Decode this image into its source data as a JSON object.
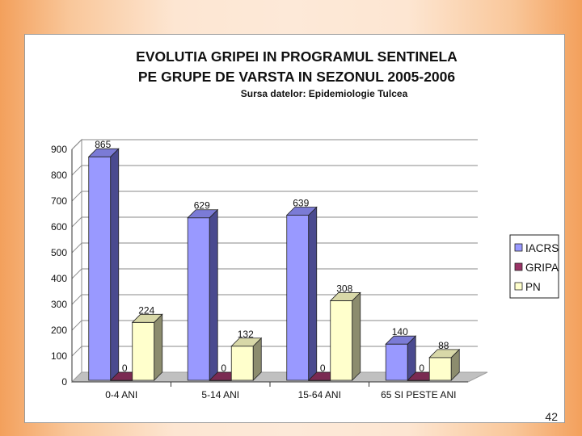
{
  "page_number": "42",
  "chart_data": {
    "type": "bar",
    "title_lines": [
      "EVOLUTIA GRIPEI IN PROGRAMUL SENTINELA",
      "PE GRUPE DE VARSTA IN SEZONUL 2005-2006"
    ],
    "subtitle": "Sursa datelor: Epidemiologie Tulcea",
    "categories": [
      "0-4 ANI",
      "5-14 ANI",
      "15-64 ANI",
      "65 SI PESTE ANI"
    ],
    "series": [
      {
        "name": "IACRS",
        "values": [
          865,
          629,
          639,
          140
        ],
        "color": "#9999ff",
        "side_color": "#4a4a8f",
        "top_color": "#7b7bd6"
      },
      {
        "name": "GRIPA",
        "values": [
          0,
          0,
          0,
          0
        ],
        "color": "#993366",
        "side_color": "#5a1c3c",
        "top_color": "#7a2a52"
      },
      {
        "name": "PN",
        "values": [
          224,
          132,
          308,
          88
        ],
        "color": "#ffffcc",
        "side_color": "#8c8c6e",
        "top_color": "#d8d8a8"
      }
    ],
    "yticks": [
      "0",
      "100",
      "200",
      "300",
      "400",
      "500",
      "600",
      "700",
      "800",
      "900"
    ],
    "ylim": [
      0,
      900
    ],
    "grid": true,
    "legend_position": "right",
    "xlabel": "",
    "ylabel": ""
  }
}
